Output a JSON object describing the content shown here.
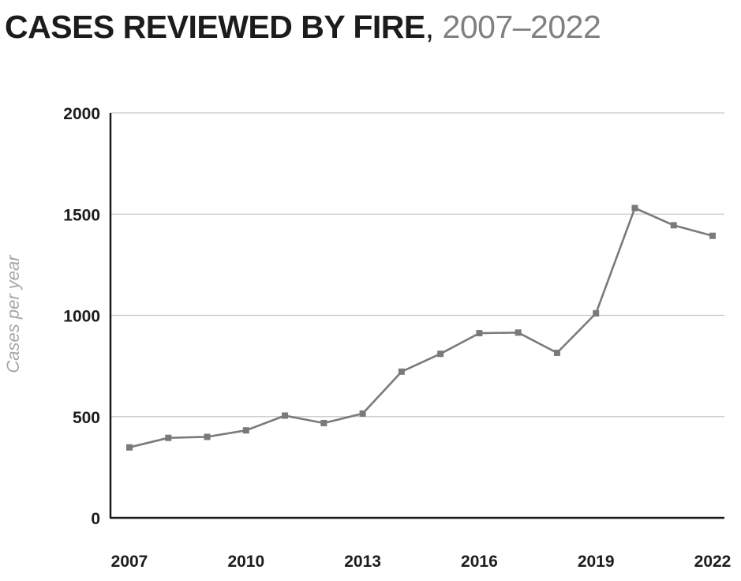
{
  "chart_data": {
    "type": "line",
    "title": "CASES REVIEWED BY FIRE",
    "title_separator": ",",
    "subtitle": "2007–2022",
    "xlabel": "",
    "ylabel": "Cases per year",
    "ylim": [
      0,
      2000
    ],
    "xlim": [
      2007,
      2022
    ],
    "y_ticks": [
      0,
      500,
      1000,
      1500,
      2000
    ],
    "x_ticks": [
      2007,
      2010,
      2013,
      2016,
      2019,
      2022
    ],
    "grid": true,
    "legend": "none",
    "colors": {
      "line": "#7a7a7a",
      "marker": "#7a7a7a",
      "grid": "#c8c8c8",
      "axis": "#1c1c1c"
    },
    "series": [
      {
        "x": [
          2007,
          2008,
          2009,
          2010,
          2011,
          2012,
          2013,
          2014,
          2015,
          2016,
          2017,
          2018,
          2019,
          2020,
          2021,
          2022
        ],
        "values": [
          348,
          395,
          400,
          432,
          505,
          468,
          515,
          722,
          810,
          912,
          915,
          815,
          1010,
          1530,
          1445,
          1393
        ]
      }
    ]
  }
}
